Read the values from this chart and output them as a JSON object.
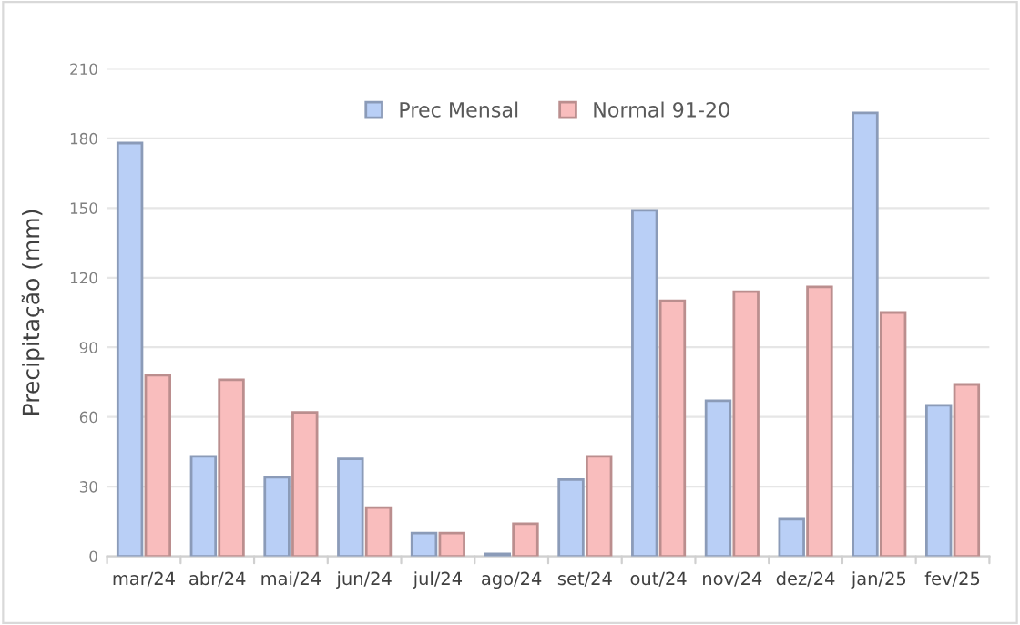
{
  "chart_data": {
    "type": "bar",
    "ylabel": "Precipitação (mm)",
    "categories": [
      "mar/24",
      "abr/24",
      "mai/24",
      "jun/24",
      "jul/24",
      "ago/24",
      "set/24",
      "out/24",
      "nov/24",
      "dez/24",
      "jan/25",
      "fev/25"
    ],
    "series": [
      {
        "name": "Prec Mensal",
        "color": "#b9cff6",
        "values": [
          178,
          43,
          34,
          42,
          10,
          1,
          33,
          149,
          67,
          16,
          191,
          65
        ]
      },
      {
        "name": "Normal 91-20",
        "color": "#f9bdbd",
        "values": [
          78,
          76,
          62,
          21,
          10,
          14,
          43,
          110,
          114,
          116,
          105,
          74
        ]
      }
    ],
    "ylim": [
      0,
      210
    ],
    "yticks": [
      0,
      30,
      60,
      90,
      120,
      150,
      180,
      210
    ],
    "grid": "y",
    "legend": "top"
  }
}
